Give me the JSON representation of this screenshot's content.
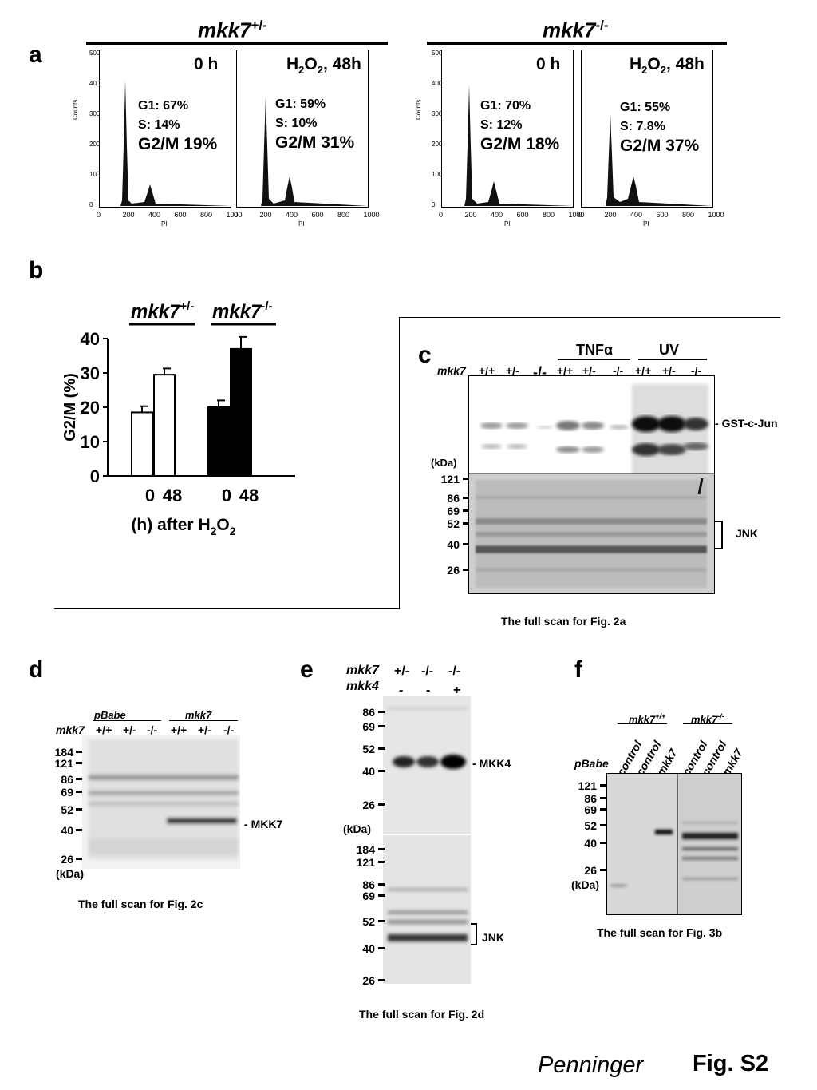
{
  "panel_labels": {
    "a": "a",
    "b": "b",
    "c": "c",
    "d": "d",
    "e": "e",
    "f": "f"
  },
  "panel_a": {
    "het_label": "mkk7",
    "het_sup": "+/-",
    "ko_label": "mkk7",
    "ko_sup": "-/-",
    "axis_ylabel": "Counts",
    "axis_xlabel": "PI",
    "x_ticks": [
      "0",
      "200",
      "400",
      "600",
      "800",
      "1000"
    ],
    "y_ticks": [
      "0",
      "100",
      "200",
      "300",
      "400",
      "500"
    ],
    "histograms": [
      {
        "title": "0 h",
        "g1": "G1: 67%",
        "s": "S: 14%",
        "g2m": "G2/M 19%"
      },
      {
        "title_pre": "H",
        "title_sub": "2",
        "title_mid": "O",
        "title_sub2": "2",
        "title_post": ", 48h",
        "g1": "G1: 59%",
        "s": "S: 10%",
        "g2m": "G2/M 31%"
      },
      {
        "title": "0 h",
        "g1": "G1: 70%",
        "s": "S: 12%",
        "g2m": "G2/M 18%"
      },
      {
        "title_pre": "H",
        "title_sub": "2",
        "title_mid": "O",
        "title_sub2": "2",
        "title_post": ", 48h",
        "g1": "G1: 55%",
        "s": "S: 7.8%",
        "g2m": "G2/M 37%"
      }
    ]
  },
  "chart_data": {
    "type": "bar",
    "categories": [
      "0",
      "48",
      "0",
      "48"
    ],
    "groups": [
      {
        "name": "mkk7 +/-",
        "values": [
          18.5,
          29.5
        ],
        "errors": [
          1.8,
          1.8
        ],
        "fill": "#ffffff"
      },
      {
        "name": "mkk7 -/-",
        "values": [
          20.0,
          37.0
        ],
        "errors": [
          2.0,
          3.5
        ],
        "fill": "#000000"
      }
    ],
    "ylabel": "G2/M (%)",
    "xlabel_pre": "(h) after H",
    "xlabel_sub": "2",
    "xlabel_mid": "O",
    "xlabel_sub2": "2",
    "ylim": [
      0,
      40
    ],
    "y_ticks": [
      "0",
      "10",
      "20",
      "30",
      "40"
    ],
    "group_label_1": "mkk7",
    "group_sup_1": "+/-",
    "group_label_2": "mkk7",
    "group_sup_2": "-/-"
  },
  "panel_c": {
    "row_label": "mkk7",
    "lanes": [
      "+/+",
      "+/-",
      "-/-",
      "+/+",
      "+/-",
      "-/-",
      "+/+",
      "+/-",
      "-/-"
    ],
    "treat1_pre": "TNF",
    "treat1_greek": "α",
    "treat2": "UV",
    "kda": "(kDa)",
    "markers": [
      "121",
      "86",
      "69",
      "52",
      "40",
      "26"
    ],
    "band1": "GST-c-Jun",
    "band2": "JNK",
    "caption": "The full scan for Fig. 2a"
  },
  "panel_d": {
    "row_label": "mkk7",
    "group1": "pBabe",
    "group2": "mkk7",
    "lanes": [
      "+/+",
      "+/-",
      "-/-",
      "+/+",
      "+/-",
      "-/-"
    ],
    "markers": [
      "184",
      "121",
      "86",
      "69",
      "52",
      "40",
      "26"
    ],
    "kda": "(kDa)",
    "band": "MKK7",
    "caption": "The full scan for Fig. 2c"
  },
  "panel_e": {
    "row1_label": "mkk7",
    "row1": [
      "+/-",
      "-/-",
      "-/-"
    ],
    "row2_label": "mkk4",
    "row2": [
      "-",
      "-",
      "+"
    ],
    "top_markers": [
      "86",
      "69",
      "52",
      "40",
      "26"
    ],
    "kda": "(kDa)",
    "bottom_markers": [
      "184",
      "121",
      "86",
      "69",
      "52",
      "40",
      "26"
    ],
    "band1": "MKK4",
    "band2": "JNK",
    "caption": "The full scan for Fig. 2d"
  },
  "panel_f": {
    "group1": "mkk7",
    "group1_sup": "+/+",
    "group2": "mkk7",
    "group2_sup": "-/-",
    "row_label": "pBabe",
    "lanes": [
      "control",
      "control",
      "mkk7",
      "control",
      "control",
      "mkk7"
    ],
    "markers": [
      "121",
      "86",
      "69",
      "52",
      "40",
      "26"
    ],
    "kda": "(kDa)",
    "caption": "The full scan for Fig. 3b"
  },
  "footer": {
    "author": "Penninger",
    "figure": "Fig. S2"
  }
}
